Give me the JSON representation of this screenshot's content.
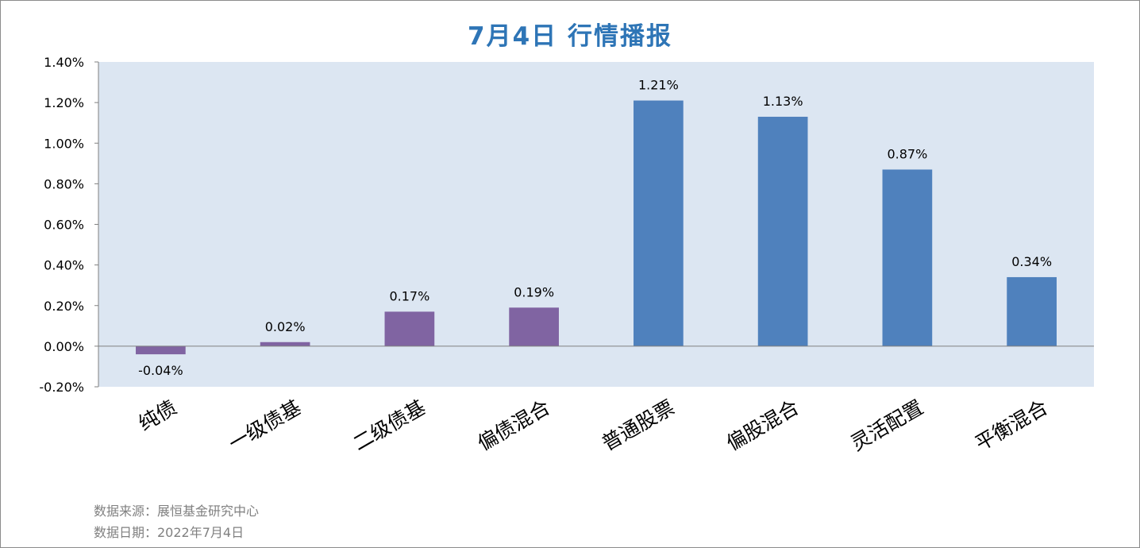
{
  "chart_data": {
    "type": "bar",
    "title": "7月4日  行情播报",
    "categories": [
      "纯债",
      "一级债基",
      "二级债基",
      "偏债混合",
      "普通股票",
      "偏股混合",
      "灵活配置",
      "平衡混合"
    ],
    "values": [
      -0.04,
      0.02,
      0.17,
      0.19,
      1.21,
      1.13,
      0.87,
      0.34
    ],
    "data_labels": [
      "-0.04%",
      "0.02%",
      "0.17%",
      "0.19%",
      "1.21%",
      "1.13%",
      "0.87%",
      "0.34%"
    ],
    "bar_colors": [
      "#8064a2",
      "#8064a2",
      "#8064a2",
      "#8064a2",
      "#4f81bd",
      "#4f81bd",
      "#4f81bd",
      "#4f81bd"
    ],
    "ylim": [
      -0.2,
      1.4
    ],
    "yticks": [
      1.4,
      1.2,
      1.0,
      0.8,
      0.6,
      0.4,
      0.2,
      0.0,
      -0.2
    ],
    "ytick_labels": [
      "1.40%",
      "1.20%",
      "1.00%",
      "0.80%",
      "0.60%",
      "0.40%",
      "0.20%",
      "0.00%",
      "-0.20%"
    ],
    "xlabel": "",
    "ylabel": "",
    "grid": false,
    "legend": "none",
    "plot_background": "#dce6f2",
    "title_color": "#2e75b6"
  },
  "footer": {
    "source": "数据来源：展恒基金研究中心",
    "date": "数据日期：2022年7月4日"
  }
}
